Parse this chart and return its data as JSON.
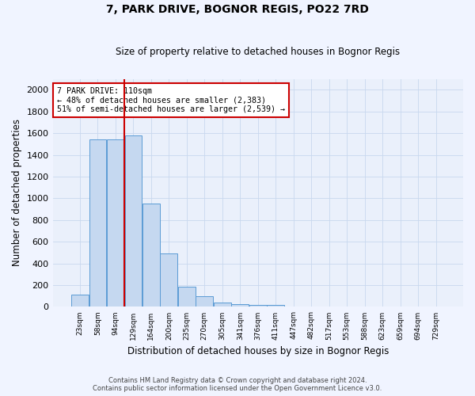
{
  "title": "7, PARK DRIVE, BOGNOR REGIS, PO22 7RD",
  "subtitle": "Size of property relative to detached houses in Bognor Regis",
  "xlabel": "Distribution of detached houses by size in Bognor Regis",
  "ylabel": "Number of detached properties",
  "bar_labels": [
    "23sqm",
    "58sqm",
    "94sqm",
    "129sqm",
    "164sqm",
    "200sqm",
    "235sqm",
    "270sqm",
    "305sqm",
    "341sqm",
    "376sqm",
    "411sqm",
    "447sqm",
    "482sqm",
    "517sqm",
    "553sqm",
    "588sqm",
    "623sqm",
    "659sqm",
    "694sqm",
    "729sqm"
  ],
  "bar_values": [
    110,
    1540,
    1540,
    1580,
    950,
    490,
    185,
    100,
    40,
    25,
    15,
    15,
    0,
    0,
    0,
    0,
    0,
    0,
    0,
    0,
    0
  ],
  "bar_color": "#c5d8f0",
  "bar_edge_color": "#5b9bd5",
  "background_color": "#eaf0fb",
  "grid_color": "#d8e4f5",
  "red_line_label": "7 PARK DRIVE: 110sqm",
  "annotation_line1": "← 48% of detached houses are smaller (2,383)",
  "annotation_line2": "51% of semi-detached houses are larger (2,539) →",
  "annotation_box_color": "#ffffff",
  "annotation_box_edge": "#cc0000",
  "ylim": [
    0,
    2100
  ],
  "yticks": [
    0,
    200,
    400,
    600,
    800,
    1000,
    1200,
    1400,
    1600,
    1800,
    2000
  ],
  "footer_line1": "Contains HM Land Registry data © Crown copyright and database right 2024.",
  "footer_line2": "Contains public sector information licensed under the Open Government Licence v3.0."
}
